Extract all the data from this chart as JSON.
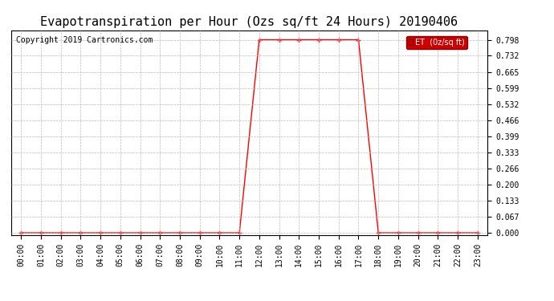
{
  "title": "Evapotranspiration per Hour (Ozs sq/ft 24 Hours) 20190406",
  "copyright": "Copyright 2019 Cartronics.com",
  "legend_label": "ET  (0z/sq ft)",
  "line_color": "#ff0000",
  "background_color": "#ffffff",
  "grid_color": "#bbbbbb",
  "hours": [
    0,
    1,
    2,
    3,
    4,
    5,
    6,
    7,
    8,
    9,
    10,
    11,
    12,
    13,
    14,
    15,
    16,
    17,
    18,
    19,
    20,
    21,
    22,
    23
  ],
  "values": [
    0.0,
    0.0,
    0.0,
    0.0,
    0.0,
    0.0,
    0.0,
    0.0,
    0.0,
    0.0,
    0.0,
    0.0,
    0.798,
    0.798,
    0.798,
    0.798,
    0.798,
    0.798,
    0.0,
    0.0,
    0.0,
    0.0,
    0.0,
    0.0
  ],
  "ylim_min": -0.008,
  "ylim_max": 0.838,
  "yticks": [
    0.0,
    0.067,
    0.133,
    0.2,
    0.266,
    0.333,
    0.399,
    0.466,
    0.532,
    0.599,
    0.665,
    0.732,
    0.798
  ],
  "marker": "+",
  "marker_size": 4,
  "marker_edge_width": 1.0,
  "line_width": 1.0,
  "title_fontsize": 11,
  "tick_fontsize": 7,
  "copyright_fontsize": 7,
  "legend_fontsize": 7,
  "legend_bg": "#cc0000"
}
